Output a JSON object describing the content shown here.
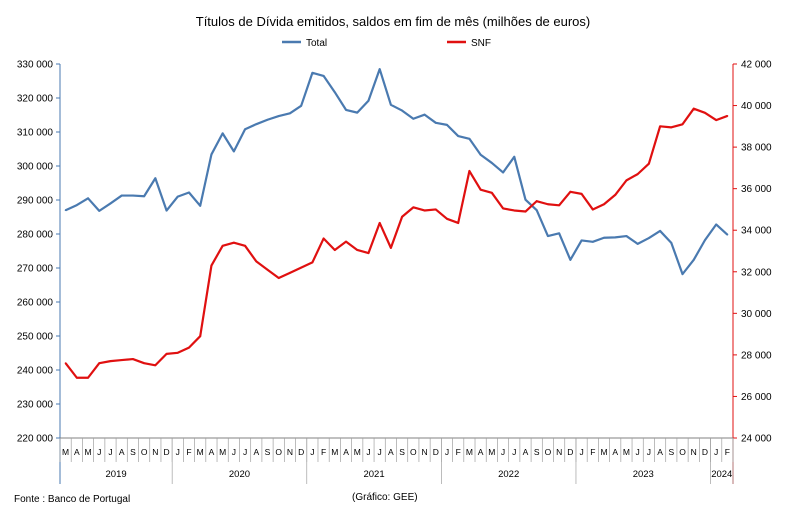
{
  "chart_data": {
    "type": "line",
    "title": "Títulos de Dívida emitidos, saldos em fim de mês (milhões de euros)",
    "legend_position": "top",
    "grid": false,
    "x": [
      "2019-03",
      "2019-04",
      "2019-05",
      "2019-06",
      "2019-07",
      "2019-08",
      "2019-09",
      "2019-10",
      "2019-11",
      "2019-12",
      "2020-01",
      "2020-02",
      "2020-03",
      "2020-04",
      "2020-05",
      "2020-06",
      "2020-07",
      "2020-08",
      "2020-09",
      "2020-10",
      "2020-11",
      "2020-12",
      "2021-01",
      "2021-02",
      "2021-03",
      "2021-04",
      "2021-05",
      "2021-06",
      "2021-07",
      "2021-08",
      "2021-09",
      "2021-10",
      "2021-11",
      "2021-12",
      "2022-01",
      "2022-02",
      "2022-03",
      "2022-04",
      "2022-05",
      "2022-06",
      "2022-07",
      "2022-08",
      "2022-09",
      "2022-10",
      "2022-11",
      "2022-12",
      "2023-01",
      "2023-02",
      "2023-03",
      "2023-04",
      "2023-05",
      "2023-06",
      "2023-07",
      "2023-08",
      "2023-09",
      "2023-10",
      "2023-11",
      "2023-12",
      "2024-01",
      "2024-02"
    ],
    "month_labels": [
      "M",
      "A",
      "M",
      "J",
      "J",
      "A",
      "S",
      "O",
      "N",
      "D",
      "J",
      "F",
      "M",
      "A",
      "M",
      "J",
      "J",
      "A",
      "S",
      "O",
      "N",
      "D",
      "J",
      "F",
      "M",
      "A",
      "M",
      "J",
      "J",
      "A",
      "S",
      "O",
      "N",
      "D",
      "J",
      "F",
      "M",
      "A",
      "M",
      "J",
      "J",
      "A",
      "S",
      "O",
      "N",
      "D",
      "J",
      "F",
      "M",
      "A",
      "M",
      "J",
      "J",
      "A",
      "S",
      "O",
      "N",
      "D",
      "J",
      "F"
    ],
    "year_labels": [
      {
        "label": "2019",
        "start": 0,
        "end": 9
      },
      {
        "label": "2020",
        "start": 10,
        "end": 21
      },
      {
        "label": "2021",
        "start": 22,
        "end": 33
      },
      {
        "label": "2022",
        "start": 34,
        "end": 45
      },
      {
        "label": "2023",
        "start": 46,
        "end": 57
      },
      {
        "label": "2024",
        "start": 58,
        "end": 59
      }
    ],
    "left_axis": {
      "ylim": [
        220000,
        330000
      ],
      "ticks": [
        220000,
        230000,
        240000,
        250000,
        260000,
        270000,
        280000,
        290000,
        300000,
        310000,
        320000,
        330000
      ],
      "tick_labels": [
        "220 000",
        "230 000",
        "240 000",
        "250 000",
        "260 000",
        "270 000",
        "280 000",
        "290 000",
        "300 000",
        "310 000",
        "320 000",
        "330 000"
      ]
    },
    "right_axis": {
      "ylim": [
        24000,
        42000
      ],
      "ticks": [
        24000,
        26000,
        28000,
        30000,
        32000,
        34000,
        36000,
        38000,
        40000,
        42000
      ],
      "tick_labels": [
        "24 000",
        "26 000",
        "28 000",
        "30 000",
        "32 000",
        "34 000",
        "36 000",
        "38 000",
        "40 000",
        "42 000"
      ]
    },
    "series": [
      {
        "name": "Total",
        "axis": "left",
        "color": "#4a7ab0",
        "values": [
          287000,
          288500,
          290500,
          286800,
          289000,
          291300,
          291300,
          291100,
          296400,
          286900,
          291000,
          292200,
          288300,
          303400,
          309600,
          304300,
          310800,
          312300,
          313600,
          314700,
          315500,
          317700,
          327400,
          326500,
          321700,
          316500,
          315700,
          319200,
          328500,
          318000,
          316300,
          313900,
          315100,
          312700,
          312100,
          308800,
          308000,
          303300,
          300900,
          298100,
          302700,
          290100,
          287000,
          279400,
          280200,
          272400,
          278100,
          277700,
          278900,
          279000,
          279400,
          277100,
          278800,
          280900,
          277400,
          268200,
          272400,
          278200,
          282800,
          279800
        ]
      },
      {
        "name": "SNF",
        "axis": "right",
        "color": "#e01010",
        "values": [
          27600,
          26900,
          26900,
          27600,
          27700,
          27750,
          27800,
          27600,
          27500,
          28050,
          28100,
          28350,
          28900,
          32300,
          33250,
          33400,
          33250,
          32500,
          32100,
          31700,
          31950,
          32200,
          32450,
          33600,
          33050,
          33450,
          33050,
          32900,
          34350,
          33150,
          34650,
          35100,
          34950,
          35000,
          34550,
          34350,
          36850,
          35950,
          35800,
          35050,
          34950,
          34900,
          35400,
          35250,
          35200,
          35850,
          35750,
          35000,
          35250,
          35700,
          36400,
          36700,
          37200,
          39000,
          38950,
          39100,
          39850,
          39650,
          39300,
          39500
        ]
      }
    ]
  },
  "footer": {
    "source": "Fonte : Banco de Portugal",
    "credit": "(Gráfico: GEE)"
  }
}
